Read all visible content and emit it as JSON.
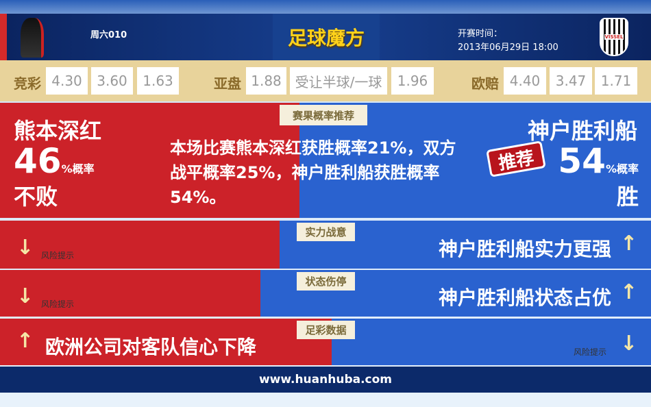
{
  "header": {
    "match_no": "周六010",
    "brand": "足球魔方",
    "kickoff_label": "开赛时间：",
    "kickoff_time": "2013年06月29日 18:00",
    "away_logo_text": "VISSEL"
  },
  "odds": {
    "jingcai_label": "竞彩",
    "jingcai": [
      "4.30",
      "3.60",
      "1.63"
    ],
    "yapan_label": "亚盘",
    "yapan": [
      "1.88",
      "受让半球/一球",
      "1.96"
    ],
    "ouzhou_label": "欧赔",
    "ouzhou": [
      "4.40",
      "3.47",
      "1.71"
    ]
  },
  "prediction": {
    "label": "赛果概率推荐",
    "home_team": "熊本深红",
    "home_pct": "46",
    "pct_suffix": "%概率",
    "home_result": "不败",
    "away_team": "神户胜利船",
    "away_pct": "54",
    "away_result": "胜",
    "recommend_badge": "推荐",
    "summary": "本场比赛熊本深红获胜概率21%，双方战平概率25%，神户胜利船获胜概率54%。"
  },
  "rows": [
    {
      "label": "实力战意",
      "left_text": "风险提示",
      "right_text": "神户胜利船实力更强"
    },
    {
      "label": "状态伤停",
      "left_text": "风险提示",
      "right_text": "神户胜利船状态占优"
    },
    {
      "label": "足彩数据",
      "left_text": "欧洲公司对客队信心下降",
      "right_text": "风险提示"
    }
  ],
  "footer": {
    "url": "www.huanhuba.com"
  },
  "colors": {
    "home": "#cc2229",
    "away": "#2a62cf",
    "odds_band": "#e8d39b",
    "header": "#0b2460"
  }
}
